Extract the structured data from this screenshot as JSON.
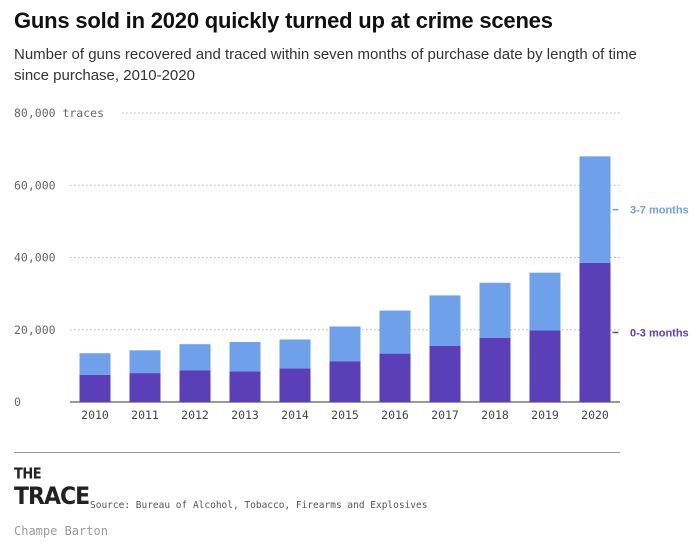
{
  "header": {
    "title": "Guns sold in 2020 quickly turned up at crime scenes",
    "subtitle": "Number of guns recovered and traced within seven months of purchase date by length of time since purchase, 2010-2020"
  },
  "chart_data": {
    "type": "bar",
    "stacked": true,
    "categories": [
      "2010",
      "2011",
      "2012",
      "2013",
      "2014",
      "2015",
      "2016",
      "2017",
      "2018",
      "2019",
      "2020"
    ],
    "series": [
      {
        "name": "0-3 months",
        "color": "#5b3fb8",
        "values": [
          7500,
          8000,
          8800,
          8500,
          9300,
          11300,
          13400,
          15500,
          17800,
          19800,
          38500
        ]
      },
      {
        "name": "3-7 months",
        "color": "#6fa0ea",
        "values": [
          6000,
          6300,
          7200,
          8100,
          8000,
          9600,
          11900,
          14000,
          15200,
          16000,
          29500
        ]
      }
    ],
    "ylim": [
      0,
      80000
    ],
    "yticks": [
      0,
      20000,
      40000,
      60000,
      80000
    ],
    "ytick_labels": [
      "0",
      "20,000",
      "40,000",
      "60,000",
      "80,000"
    ],
    "ylabel_unit": "traces",
    "grid": true,
    "legend": "direct labels at right of last bar"
  },
  "footer": {
    "logo_line1": "THE",
    "logo_line2": "TRACE",
    "source": "Source: Bureau of Alcohol, Tobacco, Firearms and Explosives",
    "credit": "Champe Barton"
  }
}
